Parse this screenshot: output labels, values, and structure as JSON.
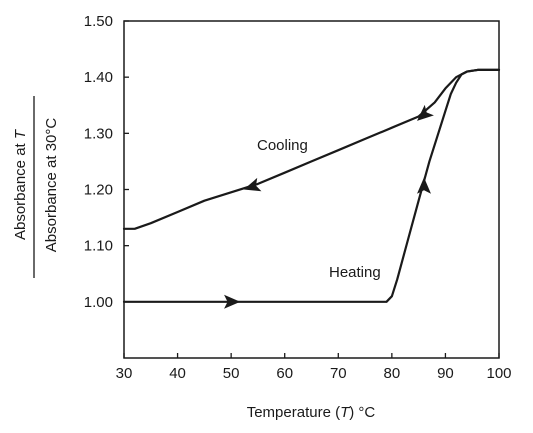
{
  "chart_data": {
    "type": "line",
    "xlabel_parts": [
      "Temperature (",
      "T",
      ") °C"
    ],
    "ylabel_numerator_parts": [
      "Absorbance at ",
      "T"
    ],
    "ylabel_denominator": "Absorbance at 30°C",
    "xlim": [
      30,
      100
    ],
    "ylim": [
      0.9,
      1.5
    ],
    "xticks": [
      30,
      40,
      50,
      60,
      70,
      80,
      90,
      100
    ],
    "yticks": [
      1.0,
      1.1,
      1.2,
      1.3,
      1.4,
      1.5
    ],
    "ytick_labels": [
      "1.00",
      "1.10",
      "1.20",
      "1.30",
      "1.40",
      "1.50"
    ],
    "grid": false,
    "series": [
      {
        "name": "Cooling",
        "direction": "decreasing temperature",
        "x": [
          30,
          32,
          35,
          40,
          45,
          50,
          55,
          60,
          65,
          70,
          75,
          80,
          85,
          88,
          90,
          92,
          94,
          96,
          100
        ],
        "y": [
          1.13,
          1.13,
          1.14,
          1.16,
          1.18,
          1.195,
          1.21,
          1.23,
          1.25,
          1.27,
          1.29,
          1.31,
          1.33,
          1.355,
          1.38,
          1.4,
          1.41,
          1.413,
          1.413
        ]
      },
      {
        "name": "Heating",
        "direction": "increasing temperature",
        "x": [
          30,
          40,
          50,
          60,
          70,
          79,
          80,
          81,
          83,
          85,
          87,
          89,
          90,
          91,
          92,
          93,
          94,
          96,
          100
        ],
        "y": [
          1.0,
          1.0,
          1.0,
          1.0,
          1.0,
          1.0,
          1.01,
          1.04,
          1.11,
          1.18,
          1.25,
          1.31,
          1.34,
          1.37,
          1.39,
          1.405,
          1.41,
          1.413,
          1.413
        ]
      }
    ],
    "annotations": [
      {
        "text": "Cooling",
        "series": "Cooling"
      },
      {
        "text": "Heating",
        "series": "Heating"
      }
    ],
    "direction_arrows": [
      {
        "series": "Cooling",
        "x": 54,
        "y": 1.205,
        "points": "left"
      },
      {
        "series": "Cooling",
        "x": 86,
        "y": 1.333,
        "points": "left"
      },
      {
        "series": "Heating",
        "x": 50,
        "y": 1.0,
        "points": "right"
      },
      {
        "series": "Heating",
        "x": 86,
        "y": 1.205,
        "points": "up"
      }
    ]
  }
}
